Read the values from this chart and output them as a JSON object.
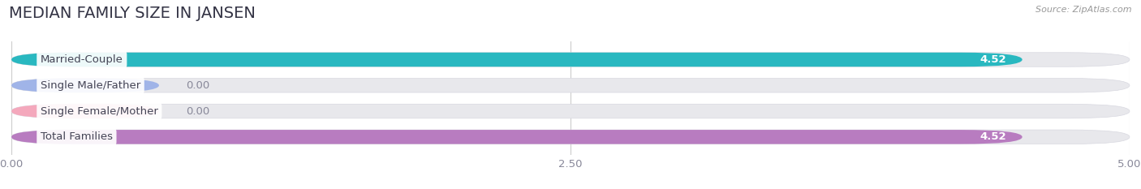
{
  "title": "MEDIAN FAMILY SIZE IN JANSEN",
  "source": "Source: ZipAtlas.com",
  "categories": [
    "Married-Couple",
    "Single Male/Father",
    "Single Female/Mother",
    "Total Families"
  ],
  "values": [
    4.52,
    0.0,
    0.0,
    4.52
  ],
  "bar_colors": [
    "#29b8c0",
    "#a0b4e8",
    "#f4a8bc",
    "#b87cc0"
  ],
  "bar_labels": [
    "4.52",
    "0.00",
    "0.00",
    "4.52"
  ],
  "xlim": [
    0,
    5.0
  ],
  "xticks": [
    0.0,
    2.5,
    5.0
  ],
  "xticklabels": [
    "0.00",
    "2.50",
    "5.00"
  ],
  "page_bg_color": "#ffffff",
  "bar_bg_color": "#e8e8ec",
  "bar_bg_border_color": "#d8d8e0",
  "title_fontsize": 14,
  "label_fontsize": 9.5,
  "value_fontsize": 9.5,
  "bar_height": 0.55,
  "figsize": [
    14.06,
    2.33
  ],
  "dpi": 100
}
